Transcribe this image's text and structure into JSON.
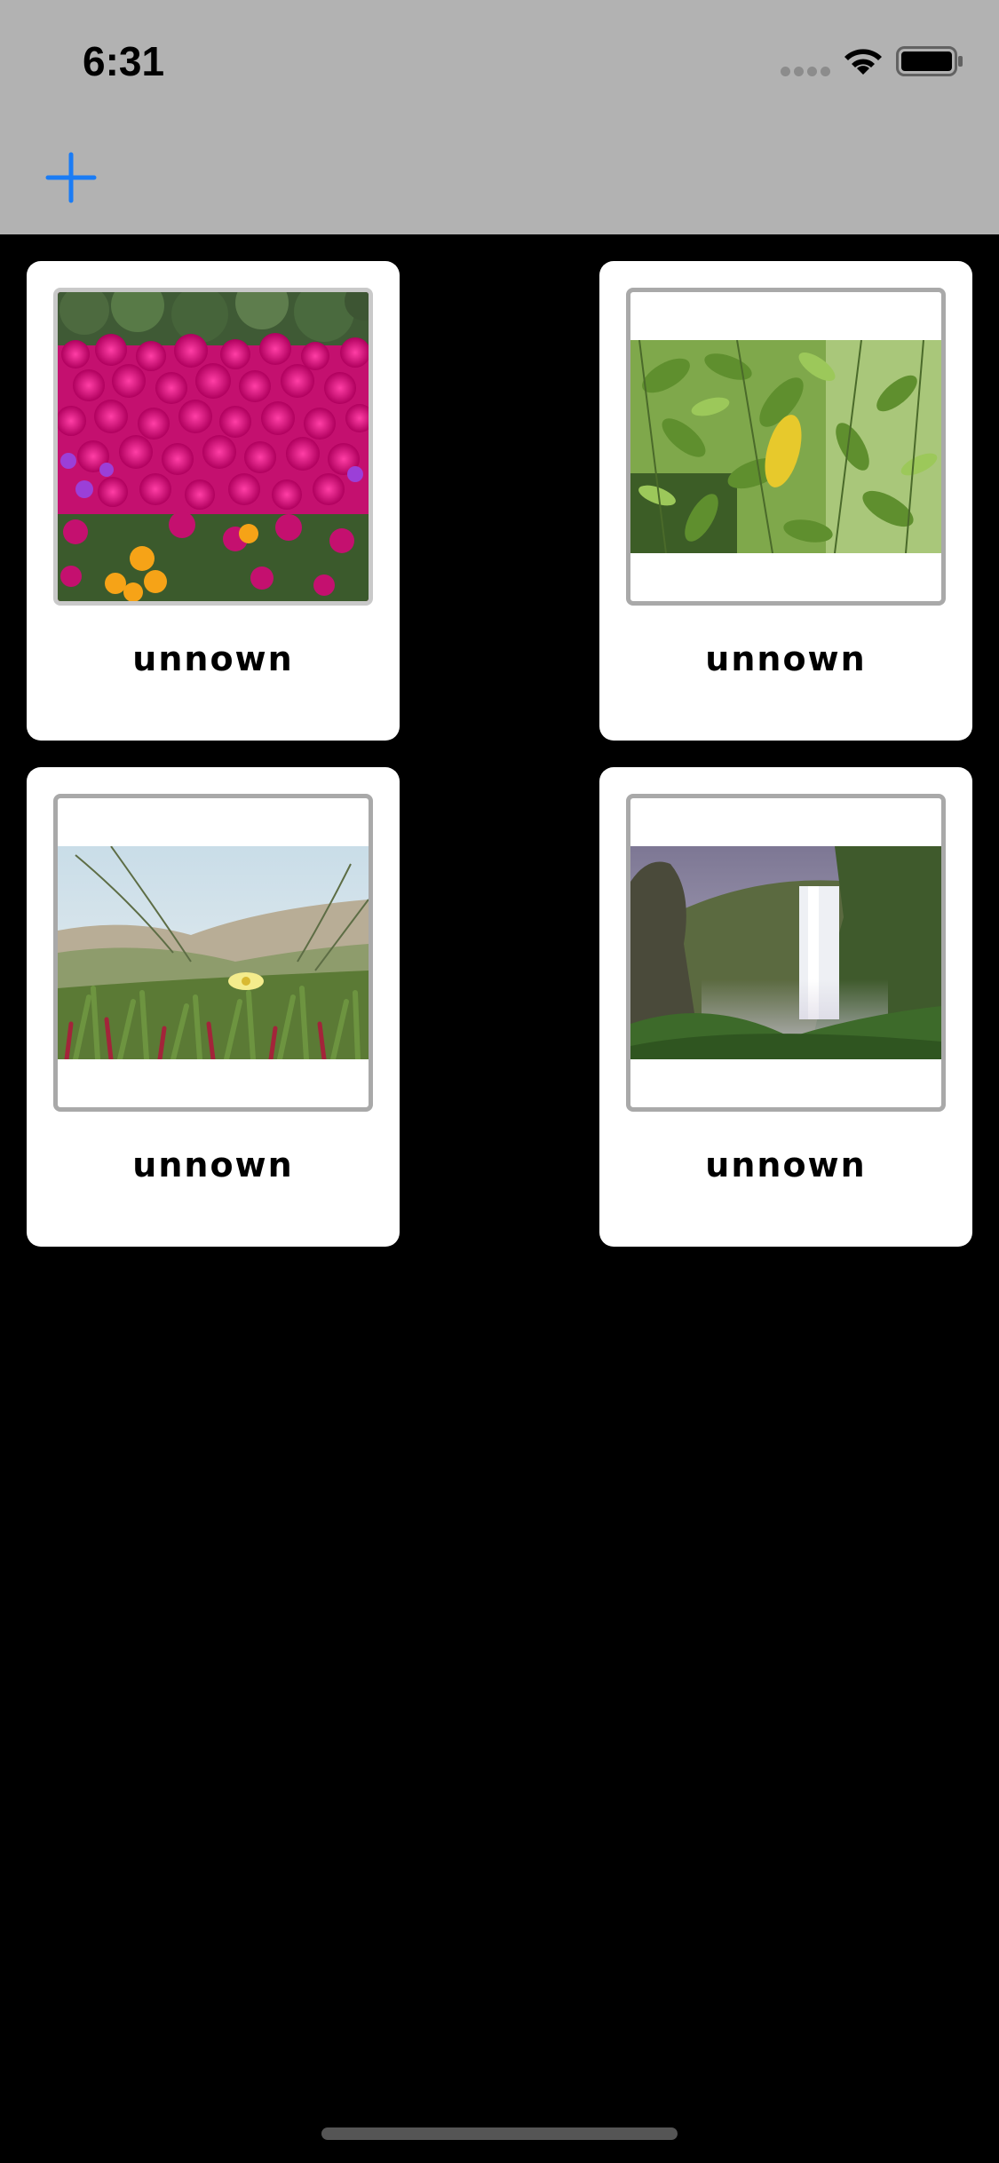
{
  "status_bar": {
    "time": "6:31"
  },
  "toolbar": {
    "add_icon": "plus-icon",
    "accent_color": "#1a7cf5"
  },
  "cards": [
    {
      "label": "unnown",
      "photo": "magenta flowers"
    },
    {
      "label": "unnown",
      "photo": "green leaves"
    },
    {
      "label": "unnown",
      "photo": "dune grass with yellow flower"
    },
    {
      "label": "unnown",
      "photo": "waterfall"
    }
  ],
  "colors": {
    "top_bar": "#b2b2b2",
    "background": "#000000",
    "card": "#ffffff",
    "frame_border": "#a9a9a9"
  }
}
